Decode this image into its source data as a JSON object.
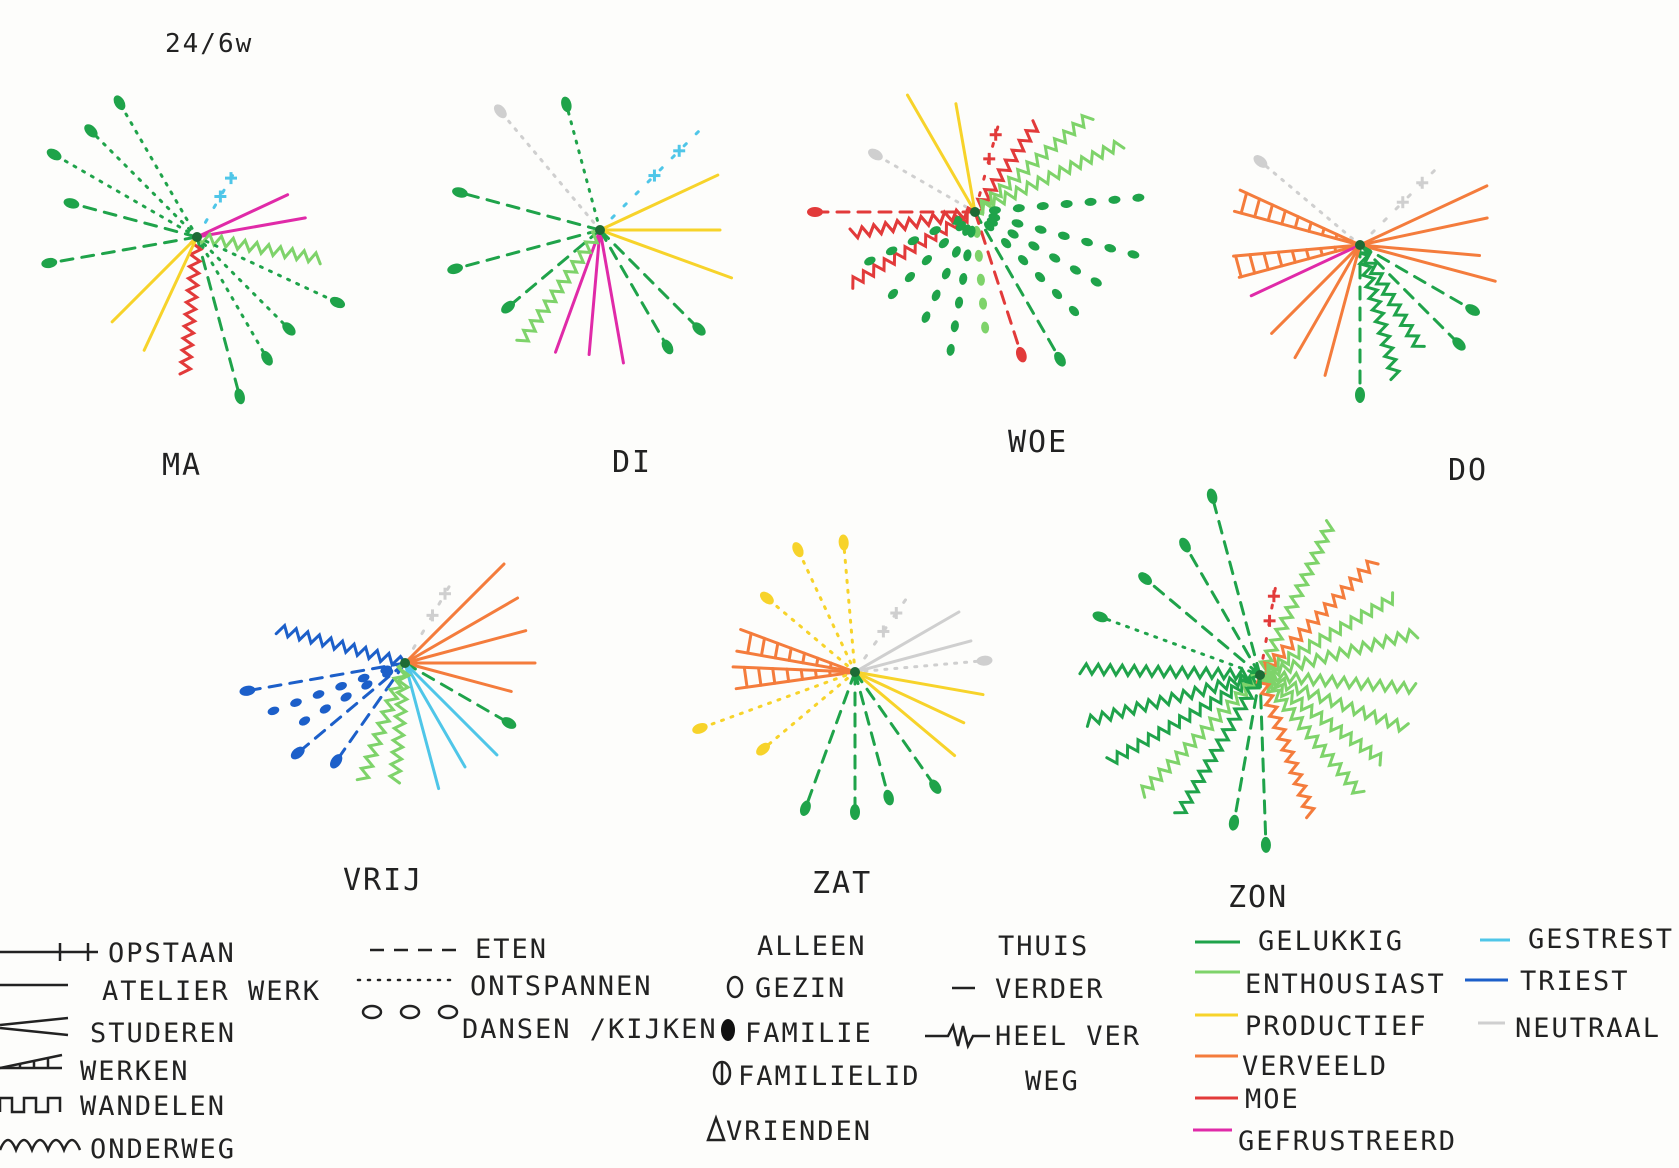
{
  "date_note": "24/6w",
  "days": [
    {
      "label": "MA"
    },
    {
      "label": "DI"
    },
    {
      "label": "WOE"
    },
    {
      "label": "DO"
    },
    {
      "label": "VRIJ"
    },
    {
      "label": "ZAT"
    },
    {
      "label": "ZON"
    }
  ],
  "legend": {
    "activities": [
      {
        "label": "OPSTAAN",
        "icon": "cross-line-icon"
      },
      {
        "label": "ATELIER WERK",
        "icon": "straight-line-icon"
      },
      {
        "label": "STUDEREN",
        "icon": "wedge-line-icon"
      },
      {
        "label": "WERKEN",
        "icon": "ladder-wedge-icon"
      },
      {
        "label": "WANDELEN",
        "icon": "square-wave-icon"
      },
      {
        "label": "ONDERWEG",
        "icon": "wavy-line-icon"
      }
    ],
    "leisure": [
      {
        "label": "ETEN",
        "icon": "dashed-line-icon"
      },
      {
        "label": "ONTSPANNEN",
        "icon": "dotted-line-icon"
      },
      {
        "label": "DANSEN /KIJKEN",
        "icon": "ovals-line-icon"
      }
    ],
    "company": [
      {
        "label": "ALLEEN",
        "icon": ""
      },
      {
        "label": "GEZIN",
        "icon": "open-circle-icon"
      },
      {
        "label": "FAMILIE",
        "icon": "filled-oval-icon"
      },
      {
        "label": "FAMILIELID",
        "icon": "barred-circle-icon"
      },
      {
        "label": "VRIENDEN",
        "icon": "triangle-icon"
      }
    ],
    "location": [
      {
        "label": "THUIS",
        "icon": ""
      },
      {
        "label": "VERDER",
        "icon": "dash-icon"
      },
      {
        "label": "HEEL VER",
        "icon": "zigzag-icon"
      },
      {
        "label": "WEG",
        "icon": ""
      }
    ],
    "moods_a": [
      {
        "label": "GELUKKIG",
        "color": "#1fa34a"
      },
      {
        "label": "ENTHOUSIAST",
        "color": "#7ed36a"
      },
      {
        "label": "PRODUCTIEF",
        "color": "#f7d32a"
      },
      {
        "label": "VERVEELD",
        "color": "#f47c3c"
      },
      {
        "label": "MOE",
        "color": "#e23a3a"
      },
      {
        "label": "GEFRUSTREERD",
        "color": "#e02aa8"
      }
    ],
    "moods_b": [
      {
        "label": "GESTREST",
        "color": "#4fc6e8"
      },
      {
        "label": "TRIEST",
        "color": "#1c5fc9"
      },
      {
        "label": "NEUTRAAL",
        "color": "#cfcfcf"
      }
    ]
  }
}
